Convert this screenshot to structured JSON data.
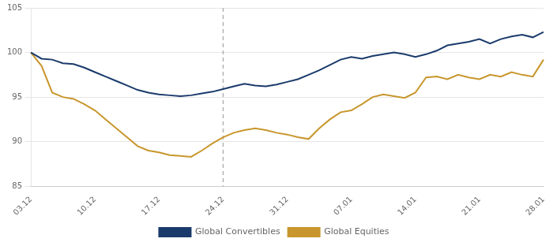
{
  "chart_data": {
    "type": "line",
    "categories": [
      "03.12",
      null,
      null,
      null,
      null,
      null,
      "10.12",
      null,
      null,
      null,
      null,
      null,
      "17.12",
      null,
      null,
      null,
      null,
      null,
      "24.12",
      null,
      null,
      null,
      null,
      null,
      "31.12",
      null,
      null,
      null,
      null,
      null,
      "07.01",
      null,
      null,
      null,
      null,
      null,
      "14.01",
      null,
      null,
      null,
      null,
      null,
      "21.01",
      null,
      null,
      null,
      null,
      null,
      "28.01"
    ],
    "series": [
      {
        "name": "Global Convertibles",
        "color": "#1a3a6b",
        "values": [
          100.0,
          99.3,
          99.2,
          98.8,
          98.7,
          98.3,
          97.8,
          97.3,
          96.8,
          96.3,
          95.8,
          95.5,
          95.3,
          95.2,
          95.1,
          95.2,
          95.4,
          95.6,
          95.9,
          96.2,
          96.5,
          96.3,
          96.2,
          96.4,
          96.7,
          97.0,
          97.5,
          98.0,
          98.6,
          99.2,
          99.5,
          99.3,
          99.6,
          99.8,
          100.0,
          99.8,
          99.5,
          99.8,
          100.2,
          100.8,
          101.0,
          101.2,
          101.5,
          101.0,
          101.5,
          101.8,
          102.0,
          101.7,
          102.3
        ]
      },
      {
        "name": "Global Equities",
        "color": "#c8962c",
        "values": [
          100.0,
          98.5,
          95.5,
          95.0,
          94.8,
          94.2,
          93.5,
          92.5,
          91.5,
          90.5,
          89.5,
          89.0,
          88.8,
          88.5,
          88.4,
          88.3,
          89.0,
          89.8,
          90.5,
          91.0,
          91.3,
          91.5,
          91.3,
          91.0,
          90.8,
          90.5,
          90.3,
          91.5,
          92.5,
          93.3,
          93.5,
          94.2,
          95.0,
          95.3,
          95.1,
          94.9,
          95.5,
          97.2,
          97.3,
          97.0,
          97.5,
          97.2,
          97.0,
          97.5,
          97.3,
          97.8,
          97.5,
          97.3,
          99.2
        ]
      }
    ],
    "vlines": [
      {
        "x": "24.12",
        "color": "#aaaaaa",
        "line_style": "dashed"
      }
    ],
    "ylim": [
      85,
      105
    ],
    "yticks": [
      85,
      90,
      95,
      100,
      105
    ],
    "grid": "y",
    "legend": "bottom"
  }
}
